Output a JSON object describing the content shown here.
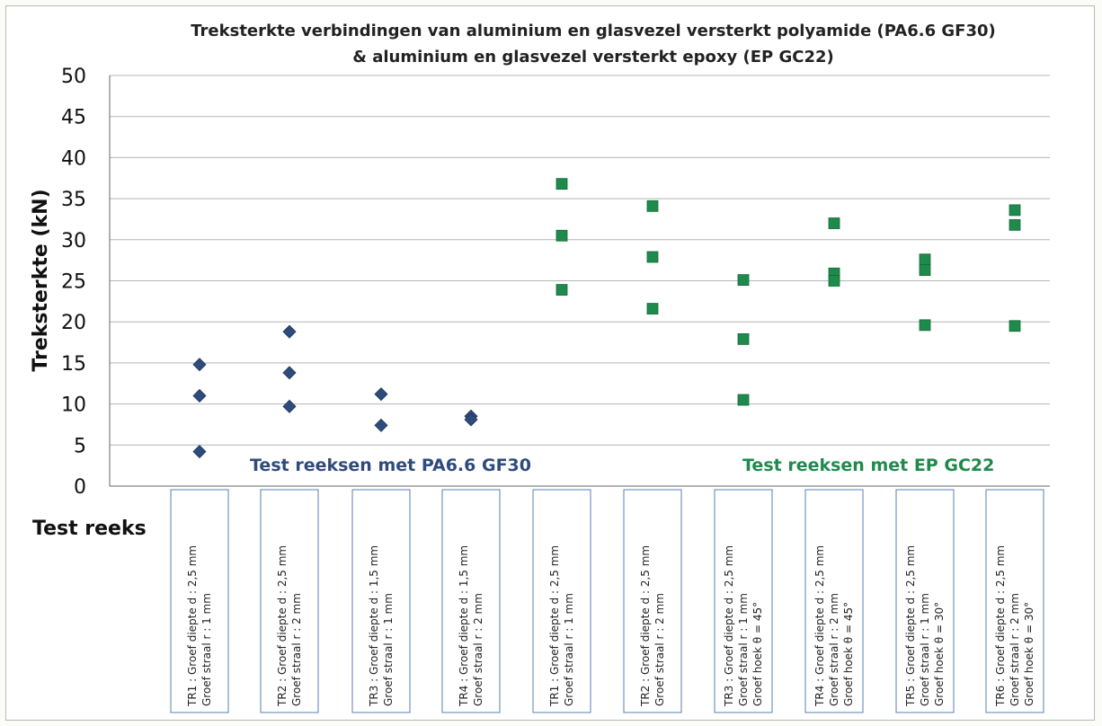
{
  "chart_data": {
    "type": "scatter",
    "title": [
      "Treksterkte verbindingen van aluminium en glasvezel versterkt polyamide (PA6.6 GF30)",
      "& aluminium en glasvezel versterkt epoxy (EP GC22)"
    ],
    "ylabel": "Treksterkte (kN)",
    "xlabel": "Test reeks",
    "ylim": [
      0,
      50
    ],
    "yticks": [
      "0",
      "5",
      "10",
      "15",
      "20",
      "25",
      "30",
      "35",
      "40",
      "45",
      "50"
    ],
    "grid": true,
    "categories": [
      [
        "TR1 : Groef diepte  d : 2,5 mm",
        "Groef straal  r : 1 mm"
      ],
      [
        "TR2 : Groef diepte  d : 2,5 mm",
        "Groef straal  r : 2 mm"
      ],
      [
        "TR3 : Groef diepte  d : 1,5 mm",
        "Groef straal  r : 1 mm"
      ],
      [
        "TR4 : Groef diepte  d : 1,5 mm",
        "Groef straal  r : 2 mm"
      ],
      [
        "TR1 : Groef diepte  d : 2,5 mm",
        "Groef straal  r : 1 mm"
      ],
      [
        "TR2 : Groef diepte  d : 2,5 mm",
        "Groef straal  r : 2 mm"
      ],
      [
        "TR3 : Groef diepte  d : 2,5 mm",
        "Groef straal r : 1 mm",
        "Groef hoek θ = 45°"
      ],
      [
        "TR4 : Groef diepte  d : 2,5 mm",
        "Groef straal  r : 2 mm",
        "Groef hoek θ = 45°"
      ],
      [
        "TR5 : Groef diepte  d : 2,5 mm",
        "Groef straal  r : 1 mm",
        "Groef hoek θ = 30°"
      ],
      [
        "TR6 : Groef diepte  d : 2,5 mm",
        "Groef straal  r : 2 mm",
        "Groef hoek θ = 30°"
      ]
    ],
    "series": [
      {
        "name": "",
        "marker": "diamond",
        "color": "#2f4b7c",
        "points": [
          {
            "x": 0,
            "y": 14.8
          },
          {
            "x": 0,
            "y": 11.0
          },
          {
            "x": 0,
            "y": 4.2
          },
          {
            "x": 1,
            "y": 18.8
          },
          {
            "x": 1,
            "y": 13.8
          },
          {
            "x": 1,
            "y": 9.7
          },
          {
            "x": 2,
            "y": 11.2
          },
          {
            "x": 2,
            "y": 7.4
          },
          {
            "x": 3,
            "y": 8.5
          },
          {
            "x": 3,
            "y": 8.1
          }
        ]
      },
      {
        "name": "",
        "marker": "square",
        "color": "#1e8a4c",
        "points": [
          {
            "x": 4,
            "y": 36.8
          },
          {
            "x": 4,
            "y": 30.5
          },
          {
            "x": 4,
            "y": 23.9
          },
          {
            "x": 5,
            "y": 34.1
          },
          {
            "x": 5,
            "y": 27.9
          },
          {
            "x": 5,
            "y": 21.6
          },
          {
            "x": 6,
            "y": 25.1
          },
          {
            "x": 6,
            "y": 17.9
          },
          {
            "x": 6,
            "y": 10.5
          },
          {
            "x": 7,
            "y": 32.0
          },
          {
            "x": 7,
            "y": 25.9
          },
          {
            "x": 7,
            "y": 25.0
          },
          {
            "x": 8,
            "y": 27.6
          },
          {
            "x": 8,
            "y": 26.3
          },
          {
            "x": 8,
            "y": 19.6
          },
          {
            "x": 9,
            "y": 33.6
          },
          {
            "x": 9,
            "y": 31.8
          },
          {
            "x": 9,
            "y": 19.5
          }
        ]
      }
    ],
    "annotations": [
      {
        "text": "Test reeksen met PA6.6 GF30",
        "color": "#2f4b7c"
      },
      {
        "text": "Test reeksen met EP GC22",
        "color": "#1e8a4c"
      }
    ]
  }
}
